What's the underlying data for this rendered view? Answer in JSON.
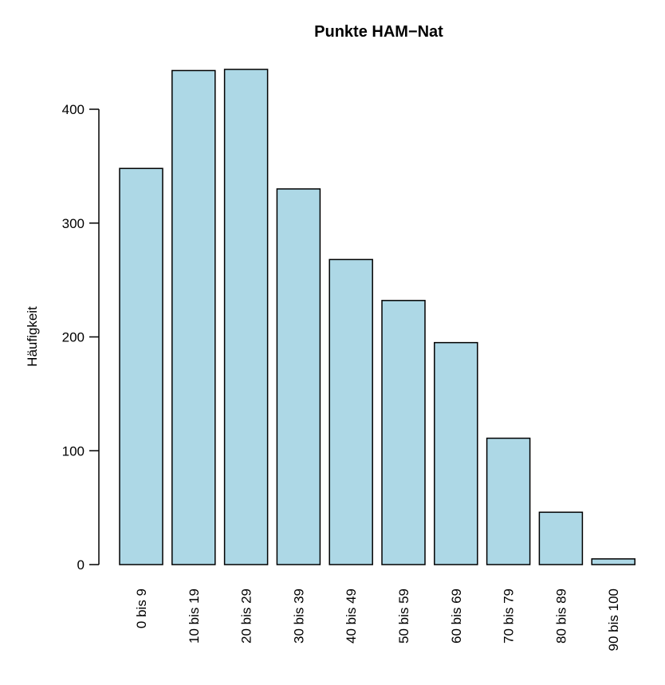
{
  "chart_data": {
    "type": "bar",
    "title": "Punkte HAM−Nat",
    "xlabel": "",
    "ylabel": "Häufigkeit",
    "categories": [
      "0 bis 9",
      "10 bis 19",
      "20 bis 29",
      "30 bis 39",
      "40 bis 49",
      "50 bis 59",
      "60 bis 69",
      "70 bis 79",
      "80 bis 89",
      "90 bis 100"
    ],
    "values": [
      348,
      434,
      435,
      330,
      268,
      232,
      195,
      111,
      46,
      5
    ],
    "ylim": [
      0,
      435
    ],
    "yticks": [
      0,
      100,
      200,
      300,
      400
    ],
    "ytick_labels": [
      "0",
      "100",
      "200",
      "300",
      "400"
    ],
    "grid": false,
    "bar_fill": "#add8e6",
    "bar_stroke": "#000000"
  }
}
